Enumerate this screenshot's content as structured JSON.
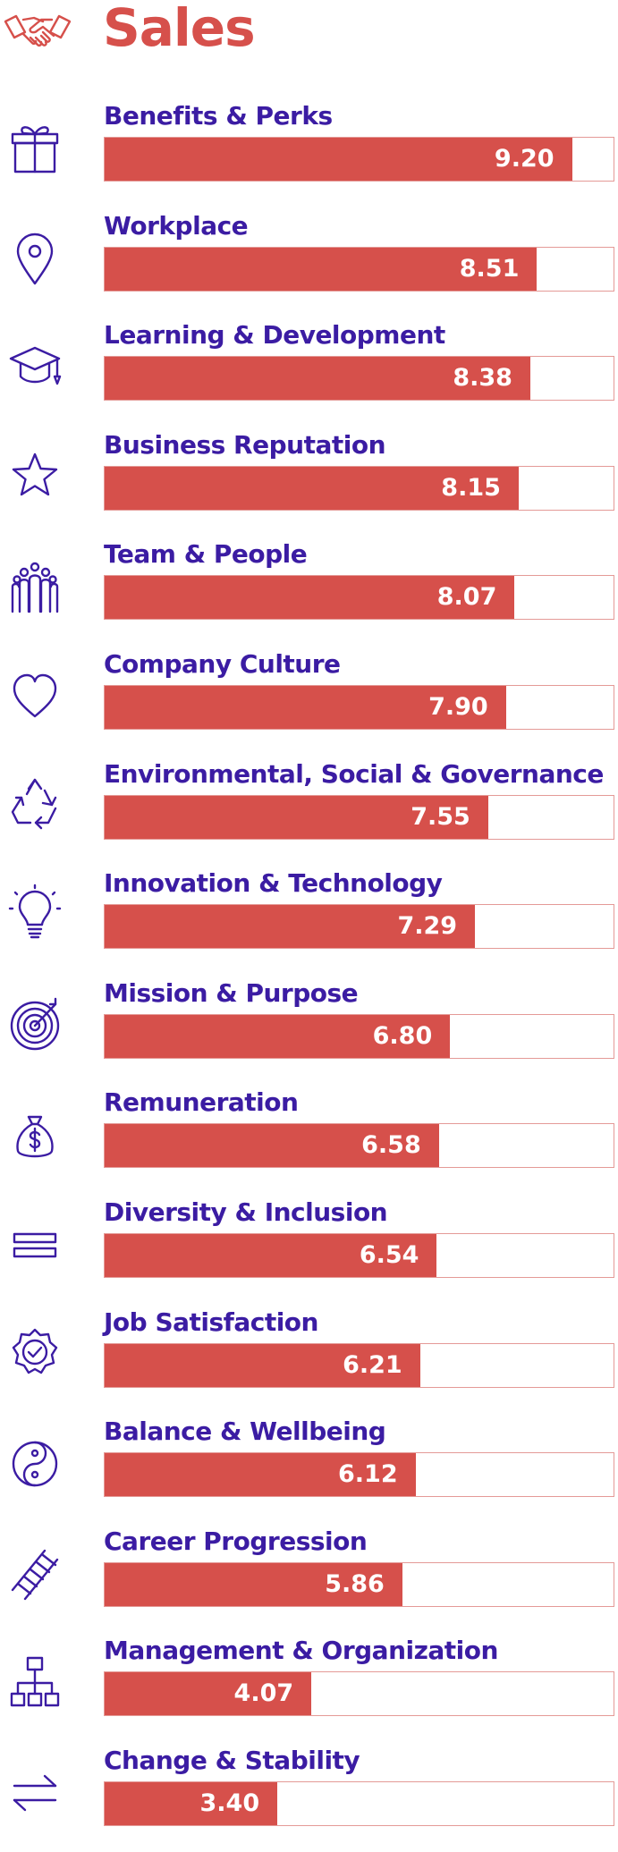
{
  "chart_data": {
    "type": "bar",
    "title": "Sales",
    "orientation": "horizontal",
    "xlim": [
      0,
      10
    ],
    "categories": [
      "Benefits & Perks",
      "Workplace",
      "Learning & Development",
      "Business Reputation",
      "Team & People",
      "Company Culture",
      "Environmental, Social & Governance",
      "Innovation & Technology",
      "Mission & Purpose",
      "Remuneration",
      "Diversity & Inclusion",
      "Job Satisfaction",
      "Balance & Wellbeing",
      "Career Progression",
      "Management & Organization",
      "Change & Stability"
    ],
    "values": [
      9.2,
      8.51,
      8.38,
      8.15,
      8.07,
      7.9,
      7.55,
      7.29,
      6.8,
      6.58,
      6.54,
      6.21,
      6.12,
      5.86,
      4.07,
      3.4
    ],
    "value_labels": [
      "9.20",
      "8.51",
      "8.38",
      "8.15",
      "8.07",
      "7.90",
      "7.55",
      "7.29",
      "6.80",
      "6.58",
      "6.54",
      "6.21",
      "6.12",
      "5.86",
      "4.07",
      "3.40"
    ],
    "icons": [
      "gift-icon",
      "location-pin-icon",
      "graduation-cap-icon",
      "star-icon",
      "people-group-icon",
      "heart-icon",
      "recycle-icon",
      "lightbulb-icon",
      "target-icon",
      "money-bag-icon",
      "equal-bars-icon",
      "badge-check-icon",
      "yin-yang-icon",
      "ladder-icon",
      "org-chart-icon",
      "arrows-exchange-icon"
    ],
    "colors": {
      "bar": "#d6504b",
      "track_border": "#e49a97",
      "label": "#3b1ca3",
      "title": "#d6504b"
    }
  },
  "header": {
    "title": "Sales",
    "icon": "handshake-icon"
  }
}
